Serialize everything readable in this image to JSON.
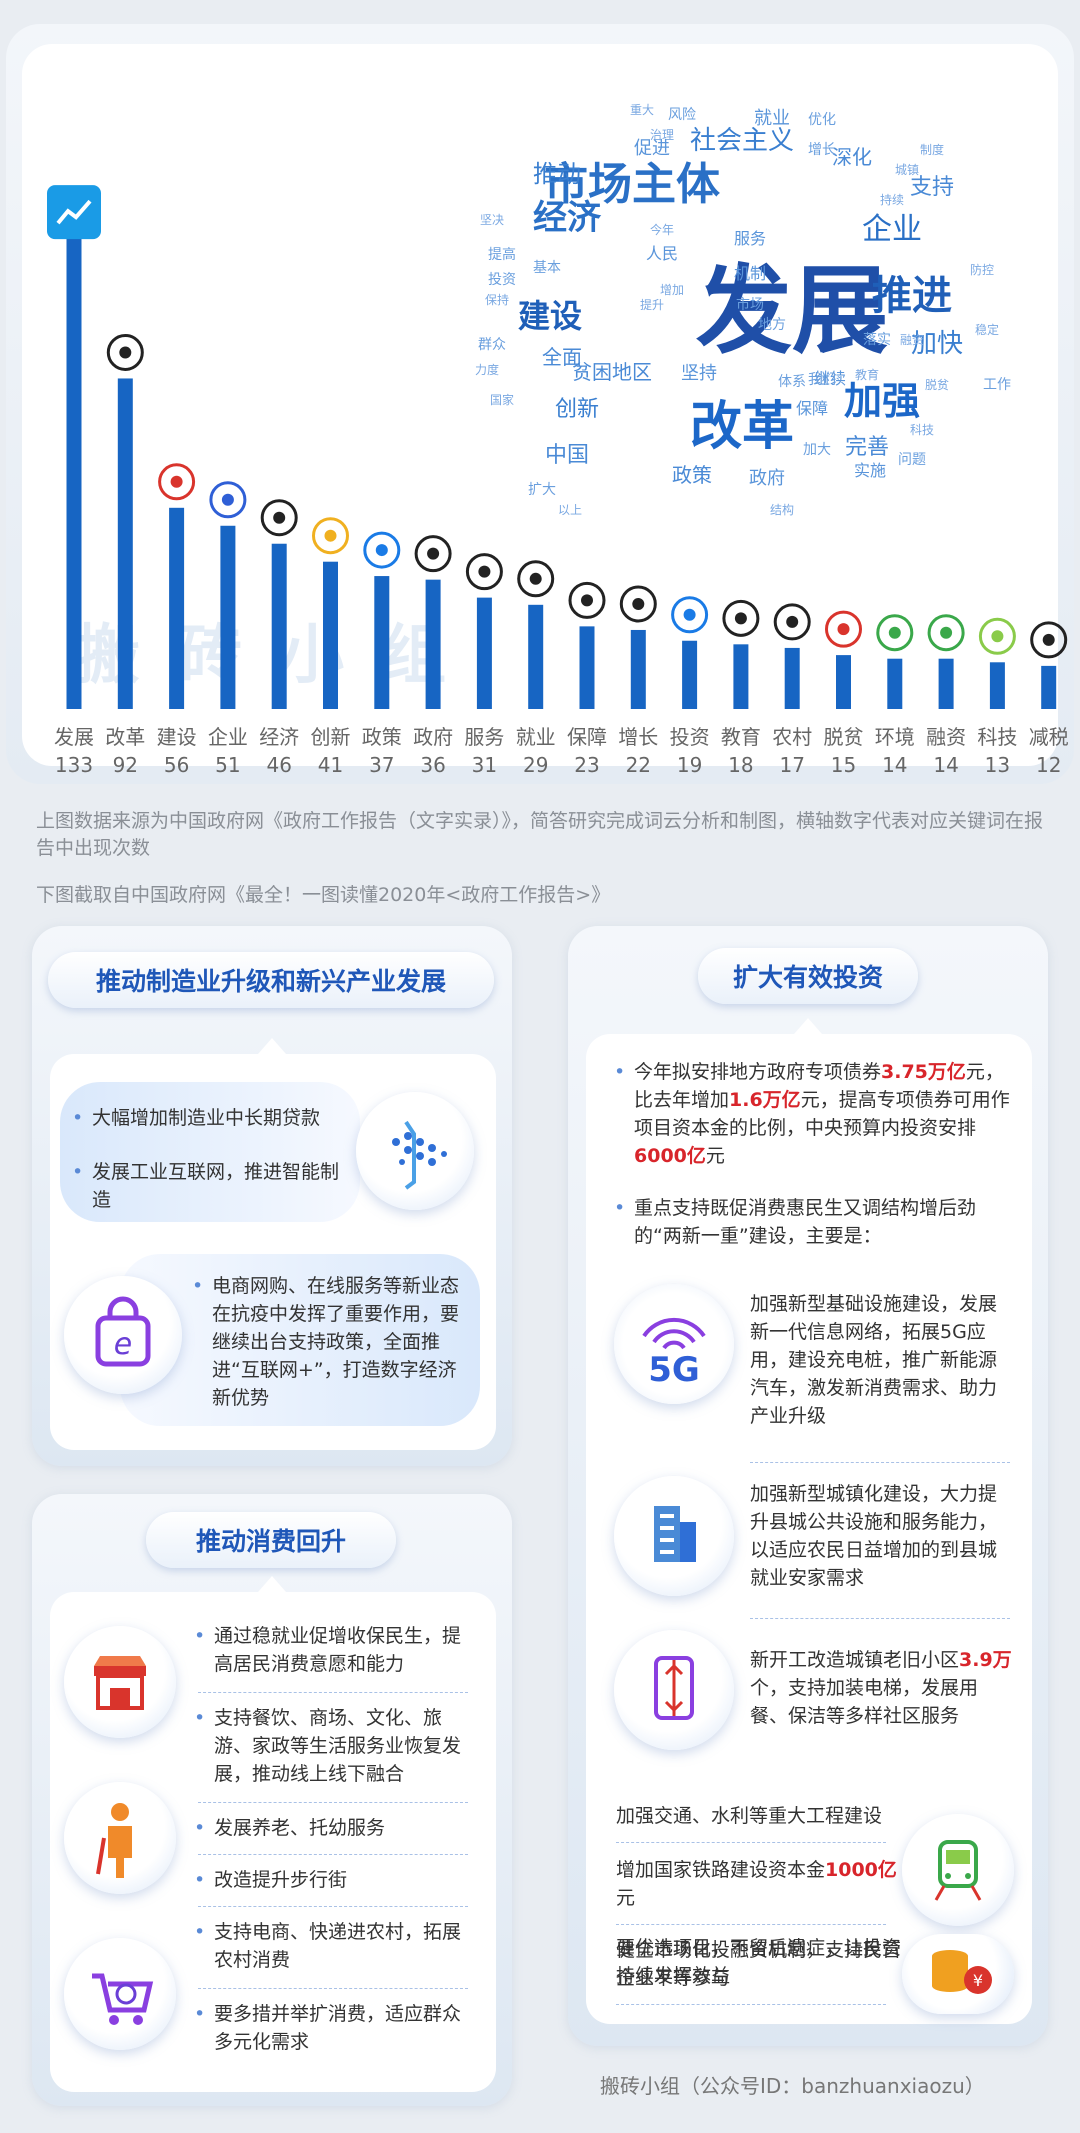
{
  "chart_data": {
    "type": "bar",
    "categories": [
      "发展",
      "改革",
      "建设",
      "企业",
      "经济",
      "创新",
      "政策",
      "政府",
      "服务",
      "就业",
      "保障",
      "增长",
      "投资",
      "教育",
      "农村",
      "脱贫",
      "环境",
      "融资",
      "科技",
      "减税"
    ],
    "values": [
      133,
      92,
      56,
      51,
      46,
      41,
      37,
      36,
      31,
      29,
      23,
      22,
      19,
      18,
      17,
      15,
      14,
      14,
      13,
      12
    ],
    "title": "",
    "xlabel": "",
    "ylabel": "",
    "ylim": [
      0,
      140
    ],
    "grid": false,
    "bar_color": "#1765c3"
  },
  "wordcloud": [
    {
      "t": "发展",
      "s": 96,
      "c": "#1f4fa8"
    },
    {
      "t": "改革",
      "s": 52,
      "c": "#1c67c8"
    },
    {
      "t": "市场主体",
      "s": 44,
      "c": "#2a70c6"
    },
    {
      "t": "推进",
      "s": 40,
      "c": "#1f5fb8"
    },
    {
      "t": "加强",
      "s": 38,
      "c": "#1c67c8"
    },
    {
      "t": "经济",
      "s": 34,
      "c": "#2a70c6"
    },
    {
      "t": "建设",
      "s": 32,
      "c": "#1f5fb8"
    },
    {
      "t": "企业",
      "s": 30,
      "c": "#2a70c6"
    },
    {
      "t": "社会主义",
      "s": 26,
      "c": "#3a7fd0"
    },
    {
      "t": "加快",
      "s": 26,
      "c": "#3a7fd0"
    },
    {
      "t": "推动",
      "s": 24,
      "c": "#3a7fd0"
    },
    {
      "t": "创新",
      "s": 22,
      "c": "#3a7fd0"
    },
    {
      "t": "中国",
      "s": 22,
      "c": "#4a8ad6"
    },
    {
      "t": "完善",
      "s": 22,
      "c": "#4a8ad6"
    },
    {
      "t": "支持",
      "s": 22,
      "c": "#4a8ad6"
    },
    {
      "t": "深化",
      "s": 20,
      "c": "#4a8ad6"
    },
    {
      "t": "贫困地区",
      "s": 20,
      "c": "#4a8ad6"
    },
    {
      "t": "全面",
      "s": 20,
      "c": "#4a8ad6"
    },
    {
      "t": "坚持",
      "s": 18,
      "c": "#5a95da"
    },
    {
      "t": "政策",
      "s": 20,
      "c": "#4a8ad6"
    },
    {
      "t": "政府",
      "s": 18,
      "c": "#5a95da"
    },
    {
      "t": "就业",
      "s": 18,
      "c": "#5a95da"
    },
    {
      "t": "促进",
      "s": 18,
      "c": "#5a95da"
    },
    {
      "t": "服务",
      "s": 16,
      "c": "#5a95da"
    },
    {
      "t": "保障",
      "s": 16,
      "c": "#5a95da"
    },
    {
      "t": "继续",
      "s": 16,
      "c": "#5a95da"
    },
    {
      "t": "实施",
      "s": 16,
      "c": "#5a95da"
    },
    {
      "t": "人民",
      "s": 16,
      "c": "#5a95da"
    },
    {
      "t": "机制",
      "s": 16,
      "c": "#5a95da"
    },
    {
      "t": "市场",
      "s": 14,
      "c": "#6a9fde"
    },
    {
      "t": "群众",
      "s": 14,
      "c": "#6a9fde"
    },
    {
      "t": "投资",
      "s": 14,
      "c": "#6a9fde"
    },
    {
      "t": "提高",
      "s": 14,
      "c": "#6a9fde"
    },
    {
      "t": "基本",
      "s": 14,
      "c": "#6a9fde"
    },
    {
      "t": "风险",
      "s": 14,
      "c": "#6a9fde"
    },
    {
      "t": "工作",
      "s": 14,
      "c": "#6a9fde"
    },
    {
      "t": "问题",
      "s": 14,
      "c": "#6a9fde"
    },
    {
      "t": "扩大",
      "s": 14,
      "c": "#6a9fde"
    },
    {
      "t": "落实",
      "s": 14,
      "c": "#6a9fde"
    },
    {
      "t": "增长",
      "s": 14,
      "c": "#6a9fde"
    },
    {
      "t": "加大",
      "s": 14,
      "c": "#6a9fde"
    },
    {
      "t": "优化",
      "s": 14,
      "c": "#6a9fde"
    },
    {
      "t": "我们",
      "s": 14,
      "c": "#6a9fde"
    },
    {
      "t": "体系",
      "s": 14,
      "c": "#6a9fde"
    },
    {
      "t": "地方",
      "s": 14,
      "c": "#6a9fde"
    },
    {
      "t": "治理",
      "s": 12,
      "c": "#7aa8e2"
    },
    {
      "t": "今年",
      "s": 12,
      "c": "#7aa8e2"
    },
    {
      "t": "坚决",
      "s": 12,
      "c": "#7aa8e2"
    },
    {
      "t": "保持",
      "s": 12,
      "c": "#7aa8e2"
    },
    {
      "t": "教育",
      "s": 12,
      "c": "#7aa8e2"
    },
    {
      "t": "持续",
      "s": 12,
      "c": "#7aa8e2"
    },
    {
      "t": "城镇",
      "s": 12,
      "c": "#7aa8e2"
    },
    {
      "t": "以上",
      "s": 12,
      "c": "#7aa8e2"
    },
    {
      "t": "重大",
      "s": 12,
      "c": "#7aa8e2"
    },
    {
      "t": "国家",
      "s": 12,
      "c": "#7aa8e2"
    },
    {
      "t": "稳定",
      "s": 12,
      "c": "#7aa8e2"
    },
    {
      "t": "融资",
      "s": 12,
      "c": "#7aa8e2"
    },
    {
      "t": "力度",
      "s": 12,
      "c": "#7aa8e2"
    },
    {
      "t": "增加",
      "s": 12,
      "c": "#7aa8e2"
    },
    {
      "t": "制度",
      "s": 12,
      "c": "#7aa8e2"
    },
    {
      "t": "提升",
      "s": 12,
      "c": "#7aa8e2"
    },
    {
      "t": "防控",
      "s": 12,
      "c": "#7aa8e2"
    },
    {
      "t": "科技",
      "s": 12,
      "c": "#7aa8e2"
    },
    {
      "t": "结构",
      "s": 12,
      "c": "#7aa8e2"
    },
    {
      "t": "脱贫",
      "s": 12,
      "c": "#7aa8e2"
    }
  ],
  "source_note": "上图数据来源为中国政府网《政府工作报告（文字实录）》，简答研究完成词云分析和制图，横轴数字代表对应关键词在报告中出现次数",
  "caption_note": "下图截取自中国政府网《最全！一图读懂2020年<政府工作报告>》",
  "watermark": "搬砖小组",
  "panel_manufacturing": {
    "title": "推动制造业升级和新兴产业发展",
    "item1": "大幅增加制造业中长期贷款",
    "item2": "发展工业互联网，推进智能制造",
    "item3": "电商网购、在线服务等新业态在抗疫中发挥了重要作用，要继续出台支持政策，全面推进“互联网+”，打造数字经济新优势"
  },
  "panel_consumption": {
    "title": "推动消费回升",
    "items": [
      "通过稳就业促增收保民生，提高居民消费意愿和能力",
      "支持餐饮、商场、文化、旅游、家政等生活服务业恢复发展，推动线上线下融合",
      "发展养老、托幼服务",
      "改造提升步行街",
      "支持电商、快递进农村，拓展农村消费",
      "要多措并举扩消费，适应群众多元化需求"
    ]
  },
  "panel_investment": {
    "title": "扩大有效投资",
    "p1_a": "今年拟安排地方政府专项债券",
    "p1_v1": "3.75万亿",
    "p1_b": "元，比去年增加",
    "p1_v2": "1.6万亿",
    "p1_c": "元，提高专项债券可用作项目资本金的比例，中央预算内投资安排",
    "p1_v3": "6000亿",
    "p1_d": "元",
    "p2": "重点支持既促消费惠民生又调结构增后劲的“两新一重”建设，主要是：",
    "icon_5g_text": "5G",
    "item_5g": "加强新型基础设施建设，发展新一代信息网络，拓展5G应用，建设充电桩，推广新能源汽车，激发新消费需求、助力产业升级",
    "item_city": "加强新型城镇化建设，大力提升县城公共设施和服务能力，以适应农民日益增加的到县城就业安家需求",
    "item_old_a": "新开工改造城镇老旧小区",
    "item_old_v": "3.9万",
    "item_old_b": "个，支持加装电梯，发展用餐、保洁等多样社区服务",
    "item_traffic": "加强交通、水利等重大工程建设",
    "item_rail_a": "增加国家铁路建设资本金",
    "item_rail_v": "1000亿",
    "item_rail_b": "元",
    "item_finance": "健全市场化投融资机制，支持民营企业平等参与",
    "item_project": "要优选项目，不留后遗症，让投资持续发挥效益"
  },
  "footer": "搬砖小组（公众号ID：banzhuanxiaozu）"
}
